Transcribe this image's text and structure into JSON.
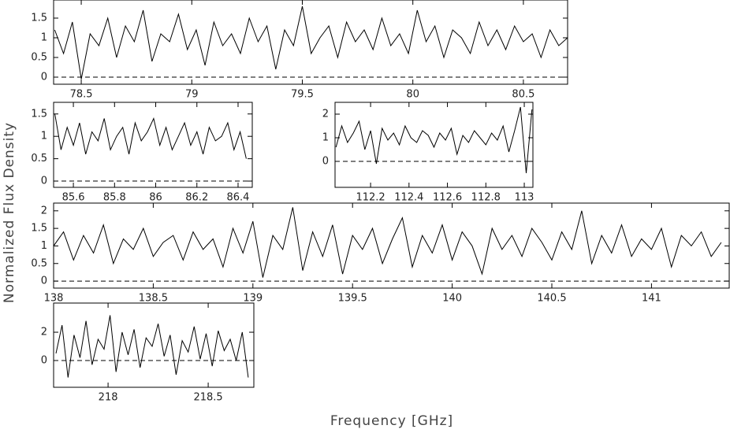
{
  "xlabel": "Frequency [GHz]",
  "ylabel": "Normalized Flux Density",
  "chart_data": [
    {
      "type": "line",
      "color": "#000000",
      "baseline": 0,
      "x": [
        78.38,
        78.42,
        78.46,
        78.5,
        78.54,
        78.58,
        78.62,
        78.66,
        78.7,
        78.74,
        78.78,
        78.82,
        78.86,
        78.9,
        78.94,
        78.98,
        79.02,
        79.06,
        79.1,
        79.14,
        79.18,
        79.22,
        79.26,
        79.3,
        79.34,
        79.38,
        79.42,
        79.46,
        79.5,
        79.54,
        79.58,
        79.62,
        79.66,
        79.7,
        79.74,
        79.78,
        79.82,
        79.86,
        79.9,
        79.94,
        79.98,
        80.02,
        80.06,
        80.1,
        80.14,
        80.18,
        80.22,
        80.26,
        80.3,
        80.34,
        80.38,
        80.42,
        80.46,
        80.5,
        80.54,
        80.58,
        80.62,
        80.66,
        80.7
      ],
      "values": [
        1.2,
        0.6,
        1.4,
        -0.05,
        1.1,
        0.8,
        1.5,
        0.5,
        1.3,
        0.9,
        1.7,
        0.4,
        1.1,
        0.9,
        1.6,
        0.7,
        1.2,
        0.3,
        1.4,
        0.8,
        1.1,
        0.6,
        1.5,
        0.9,
        1.3,
        0.2,
        1.2,
        0.8,
        1.8,
        0.6,
        1.0,
        1.3,
        0.5,
        1.4,
        0.9,
        1.2,
        0.7,
        1.5,
        0.8,
        1.1,
        0.6,
        1.7,
        0.9,
        1.3,
        0.5,
        1.2,
        1.0,
        0.6,
        1.4,
        0.8,
        1.2,
        0.7,
        1.3,
        0.9,
        1.1,
        0.5,
        1.2,
        0.8,
        1.0
      ],
      "xlim": [
        78.375,
        80.7
      ],
      "ylim": [
        -0.18,
        1.96
      ],
      "xticks": [
        78.5,
        79,
        79.5,
        80,
        80.5
      ],
      "yticks": [
        0,
        0.5,
        1,
        1.5
      ]
    },
    {
      "type": "line",
      "color": "#000000",
      "baseline": 0,
      "x": [
        85.51,
        85.54,
        85.57,
        85.6,
        85.63,
        85.66,
        85.69,
        85.72,
        85.75,
        85.78,
        85.81,
        85.84,
        85.87,
        85.9,
        85.93,
        85.96,
        85.99,
        86.02,
        86.05,
        86.08,
        86.11,
        86.14,
        86.17,
        86.2,
        86.23,
        86.26,
        86.29,
        86.32,
        86.35,
        86.38,
        86.41,
        86.44
      ],
      "values": [
        1.5,
        0.7,
        1.2,
        0.8,
        1.3,
        0.6,
        1.1,
        0.9,
        1.4,
        0.7,
        1.0,
        1.2,
        0.6,
        1.3,
        0.9,
        1.1,
        1.4,
        0.8,
        1.2,
        0.7,
        1.0,
        1.3,
        0.8,
        1.1,
        0.6,
        1.2,
        0.9,
        1.0,
        1.3,
        0.7,
        1.1,
        0.5
      ],
      "xlim": [
        85.504,
        86.469
      ],
      "ylim": [
        -0.14,
        1.76
      ],
      "xticks": [
        85.6,
        85.8,
        86,
        86.2,
        86.4
      ],
      "yticks": [
        0,
        0.5,
        1,
        1.5
      ]
    },
    {
      "type": "line",
      "color": "#000000",
      "baseline": 0,
      "x": [
        112.02,
        112.05,
        112.08,
        112.11,
        112.14,
        112.17,
        112.2,
        112.23,
        112.26,
        112.29,
        112.32,
        112.35,
        112.38,
        112.41,
        112.44,
        112.47,
        112.5,
        112.53,
        112.56,
        112.59,
        112.62,
        112.65,
        112.68,
        112.71,
        112.74,
        112.77,
        112.8,
        112.83,
        112.86,
        112.89,
        112.92,
        112.95,
        112.98,
        113.01,
        113.04
      ],
      "values": [
        0.6,
        1.5,
        0.8,
        1.2,
        1.7,
        0.5,
        1.3,
        -0.1,
        1.4,
        0.9,
        1.2,
        0.7,
        1.5,
        1.0,
        0.8,
        1.3,
        1.1,
        0.6,
        1.2,
        0.9,
        1.4,
        0.3,
        1.1,
        0.8,
        1.3,
        1.0,
        0.7,
        1.2,
        0.9,
        1.5,
        0.4,
        1.3,
        2.3,
        -0.5,
        2.2
      ],
      "xlim": [
        112.015,
        113.045
      ],
      "ylim": [
        -1.1,
        2.5
      ],
      "xticks": [
        112.2,
        112.4,
        112.6,
        112.8,
        113
      ],
      "yticks": [
        0,
        1,
        2
      ]
    },
    {
      "type": "line",
      "color": "#000000",
      "baseline": 0,
      "x": [
        138.0,
        138.05,
        138.1,
        138.15,
        138.2,
        138.25,
        138.3,
        138.35,
        138.4,
        138.45,
        138.5,
        138.55,
        138.6,
        138.65,
        138.7,
        138.75,
        138.8,
        138.85,
        138.9,
        138.95,
        139.0,
        139.05,
        139.1,
        139.15,
        139.2,
        139.25,
        139.3,
        139.35,
        139.4,
        139.45,
        139.5,
        139.55,
        139.6,
        139.65,
        139.7,
        139.75,
        139.8,
        139.85,
        139.9,
        139.95,
        140.0,
        140.05,
        140.1,
        140.15,
        140.2,
        140.25,
        140.3,
        140.35,
        140.4,
        140.45,
        140.5,
        140.55,
        140.6,
        140.65,
        140.7,
        140.75,
        140.8,
        140.85,
        140.9,
        140.95,
        141.0,
        141.05,
        141.1,
        141.15,
        141.2,
        141.25,
        141.3,
        141.35
      ],
      "values": [
        1.0,
        1.4,
        0.6,
        1.3,
        0.8,
        1.6,
        0.5,
        1.2,
        0.9,
        1.5,
        0.7,
        1.1,
        1.3,
        0.6,
        1.4,
        0.9,
        1.2,
        0.4,
        1.5,
        0.8,
        1.7,
        0.1,
        1.3,
        0.9,
        2.1,
        0.3,
        1.4,
        0.7,
        1.6,
        0.2,
        1.3,
        0.9,
        1.5,
        0.5,
        1.2,
        1.8,
        0.4,
        1.3,
        0.8,
        1.6,
        0.6,
        1.4,
        1.0,
        0.2,
        1.5,
        0.9,
        1.3,
        0.7,
        1.5,
        1.1,
        0.6,
        1.4,
        0.9,
        2.0,
        0.5,
        1.3,
        0.8,
        1.6,
        0.7,
        1.2,
        0.9,
        1.5,
        0.4,
        1.3,
        1.0,
        1.4,
        0.7,
        1.1
      ],
      "xlim": [
        138,
        141.39
      ],
      "ylim": [
        -0.2,
        2.22
      ],
      "xticks": [
        138,
        138.5,
        139,
        139.5,
        140,
        140.5,
        141
      ],
      "yticks": [
        0,
        0.5,
        1,
        1.5,
        2
      ]
    },
    {
      "type": "line",
      "color": "#000000",
      "baseline": 0,
      "x": [
        217.74,
        217.77,
        217.8,
        217.83,
        217.86,
        217.89,
        217.92,
        217.95,
        217.98,
        218.01,
        218.04,
        218.07,
        218.1,
        218.13,
        218.16,
        218.19,
        218.22,
        218.25,
        218.28,
        218.31,
        218.34,
        218.37,
        218.4,
        218.43,
        218.46,
        218.49,
        218.52,
        218.55,
        218.58,
        218.61,
        218.64,
        218.67,
        218.7
      ],
      "values": [
        0.5,
        2.5,
        -1.2,
        1.8,
        0.2,
        2.8,
        -0.3,
        1.5,
        0.8,
        3.2,
        -0.8,
        2.0,
        0.4,
        2.2,
        -0.5,
        1.6,
        1.0,
        2.6,
        0.3,
        1.8,
        -1.0,
        1.4,
        0.6,
        2.4,
        0.1,
        1.9,
        -0.4,
        2.1,
        0.7,
        1.5,
        0.0,
        2.0,
        -1.2
      ],
      "xlim": [
        217.728,
        218.728
      ],
      "ylim": [
        -1.89,
        4.06
      ],
      "xticks": [
        218,
        218.5
      ],
      "yticks": [
        0,
        2
      ]
    }
  ]
}
